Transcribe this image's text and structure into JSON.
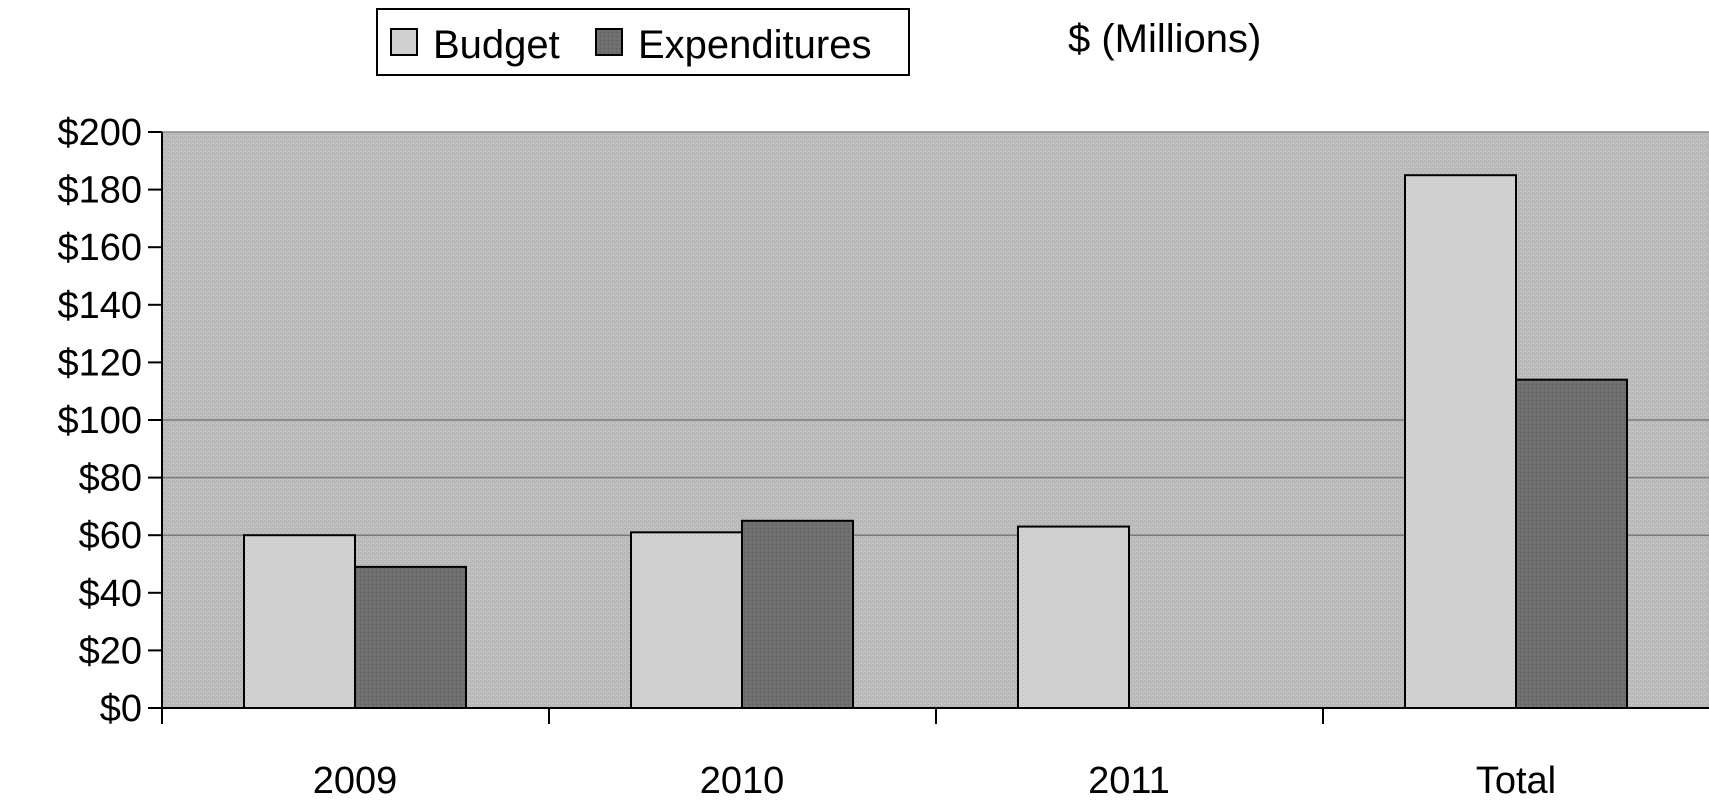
{
  "chart_data": {
    "type": "bar",
    "title": "",
    "units_label": "$ (Millions)",
    "xlabel": "",
    "ylabel": "",
    "categories": [
      "2009",
      "2010",
      "2011",
      "Total"
    ],
    "series": [
      {
        "name": "Budget",
        "values": [
          60,
          61,
          63,
          185
        ],
        "color": "#cfcfcf"
      },
      {
        "name": "Expenditures",
        "values": [
          49,
          65,
          null,
          114
        ],
        "color": "#6e6e6e"
      }
    ],
    "ylim": [
      0,
      200
    ],
    "yticks": [
      0,
      20,
      40,
      60,
      80,
      100,
      120,
      140,
      160,
      180,
      200
    ],
    "ytick_labels": [
      "$0",
      "$20",
      "$40",
      "$60",
      "$80",
      "$100",
      "$120",
      "$140",
      "$160",
      "$180",
      "$200"
    ],
    "gridlines_at": [
      60,
      80,
      100
    ],
    "plot_background": "#b8b8b8",
    "legend_position": "top-left"
  }
}
